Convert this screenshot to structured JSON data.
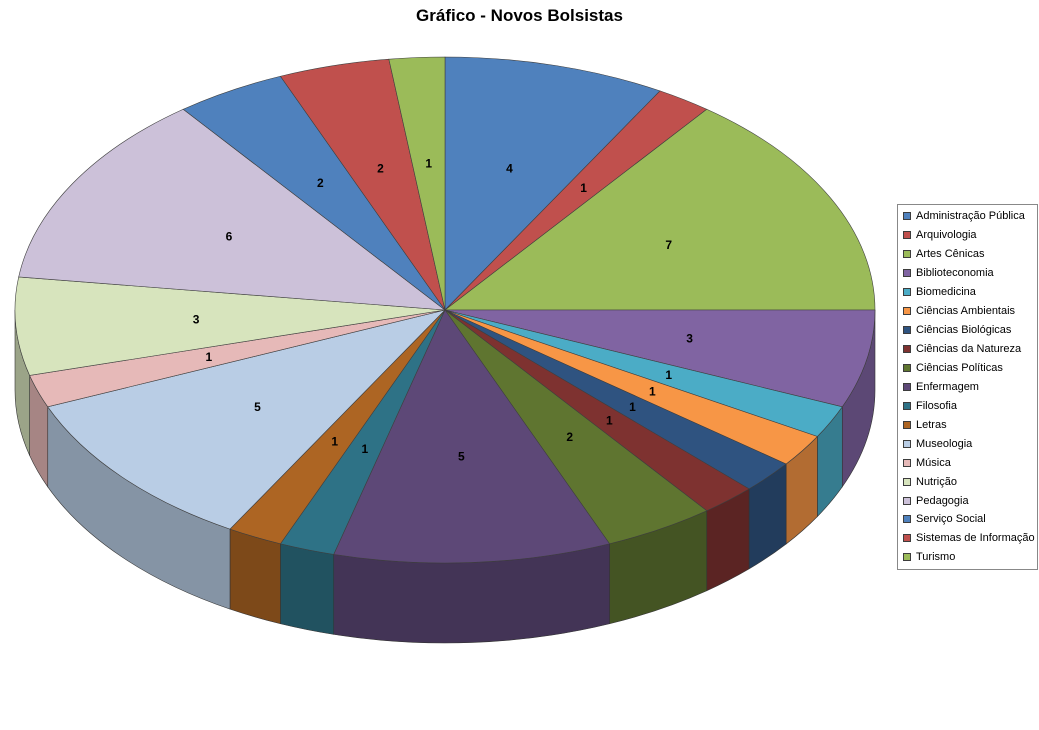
{
  "chart_data": {
    "type": "pie",
    "title": "Gráfico - Novos Bolsistas",
    "effect": "3d",
    "direction": "clockwise",
    "start_angle_deg": 0,
    "data_labels": "value",
    "legend_position": "right",
    "categories": [
      "Administração Pública",
      "Arquivologia",
      "Artes Cênicas",
      "Biblioteconomia",
      "Biomedicina",
      "Ciências Ambientais",
      "Ciências Biológicas",
      "Ciências da Natureza",
      "Ciências Políticas",
      "Enfermagem",
      "Filosofia",
      "Letras",
      "Museologia",
      "Música",
      "Nutrição",
      "Pedagogia",
      "Serviço Social",
      "Sistemas de Informação",
      "Turismo"
    ],
    "values": [
      4,
      1,
      7,
      3,
      1,
      1,
      1,
      1,
      2,
      5,
      1,
      1,
      5,
      1,
      3,
      6,
      2,
      2,
      1
    ],
    "colors": [
      "#4F81BD",
      "#C0504D",
      "#9BBB59",
      "#8064A2",
      "#4BACC6",
      "#F79646",
      "#2F5380",
      "#7E3230",
      "#5F7530",
      "#5D4877",
      "#2E7286",
      "#AD6523",
      "#B9CDE5",
      "#E6B9B8",
      "#D7E4BD",
      "#CCC1D9",
      "#4F81BD",
      "#C0504D",
      "#9BBB59"
    ],
    "background_color": "#FFFFFF",
    "label_color": "#000000"
  }
}
